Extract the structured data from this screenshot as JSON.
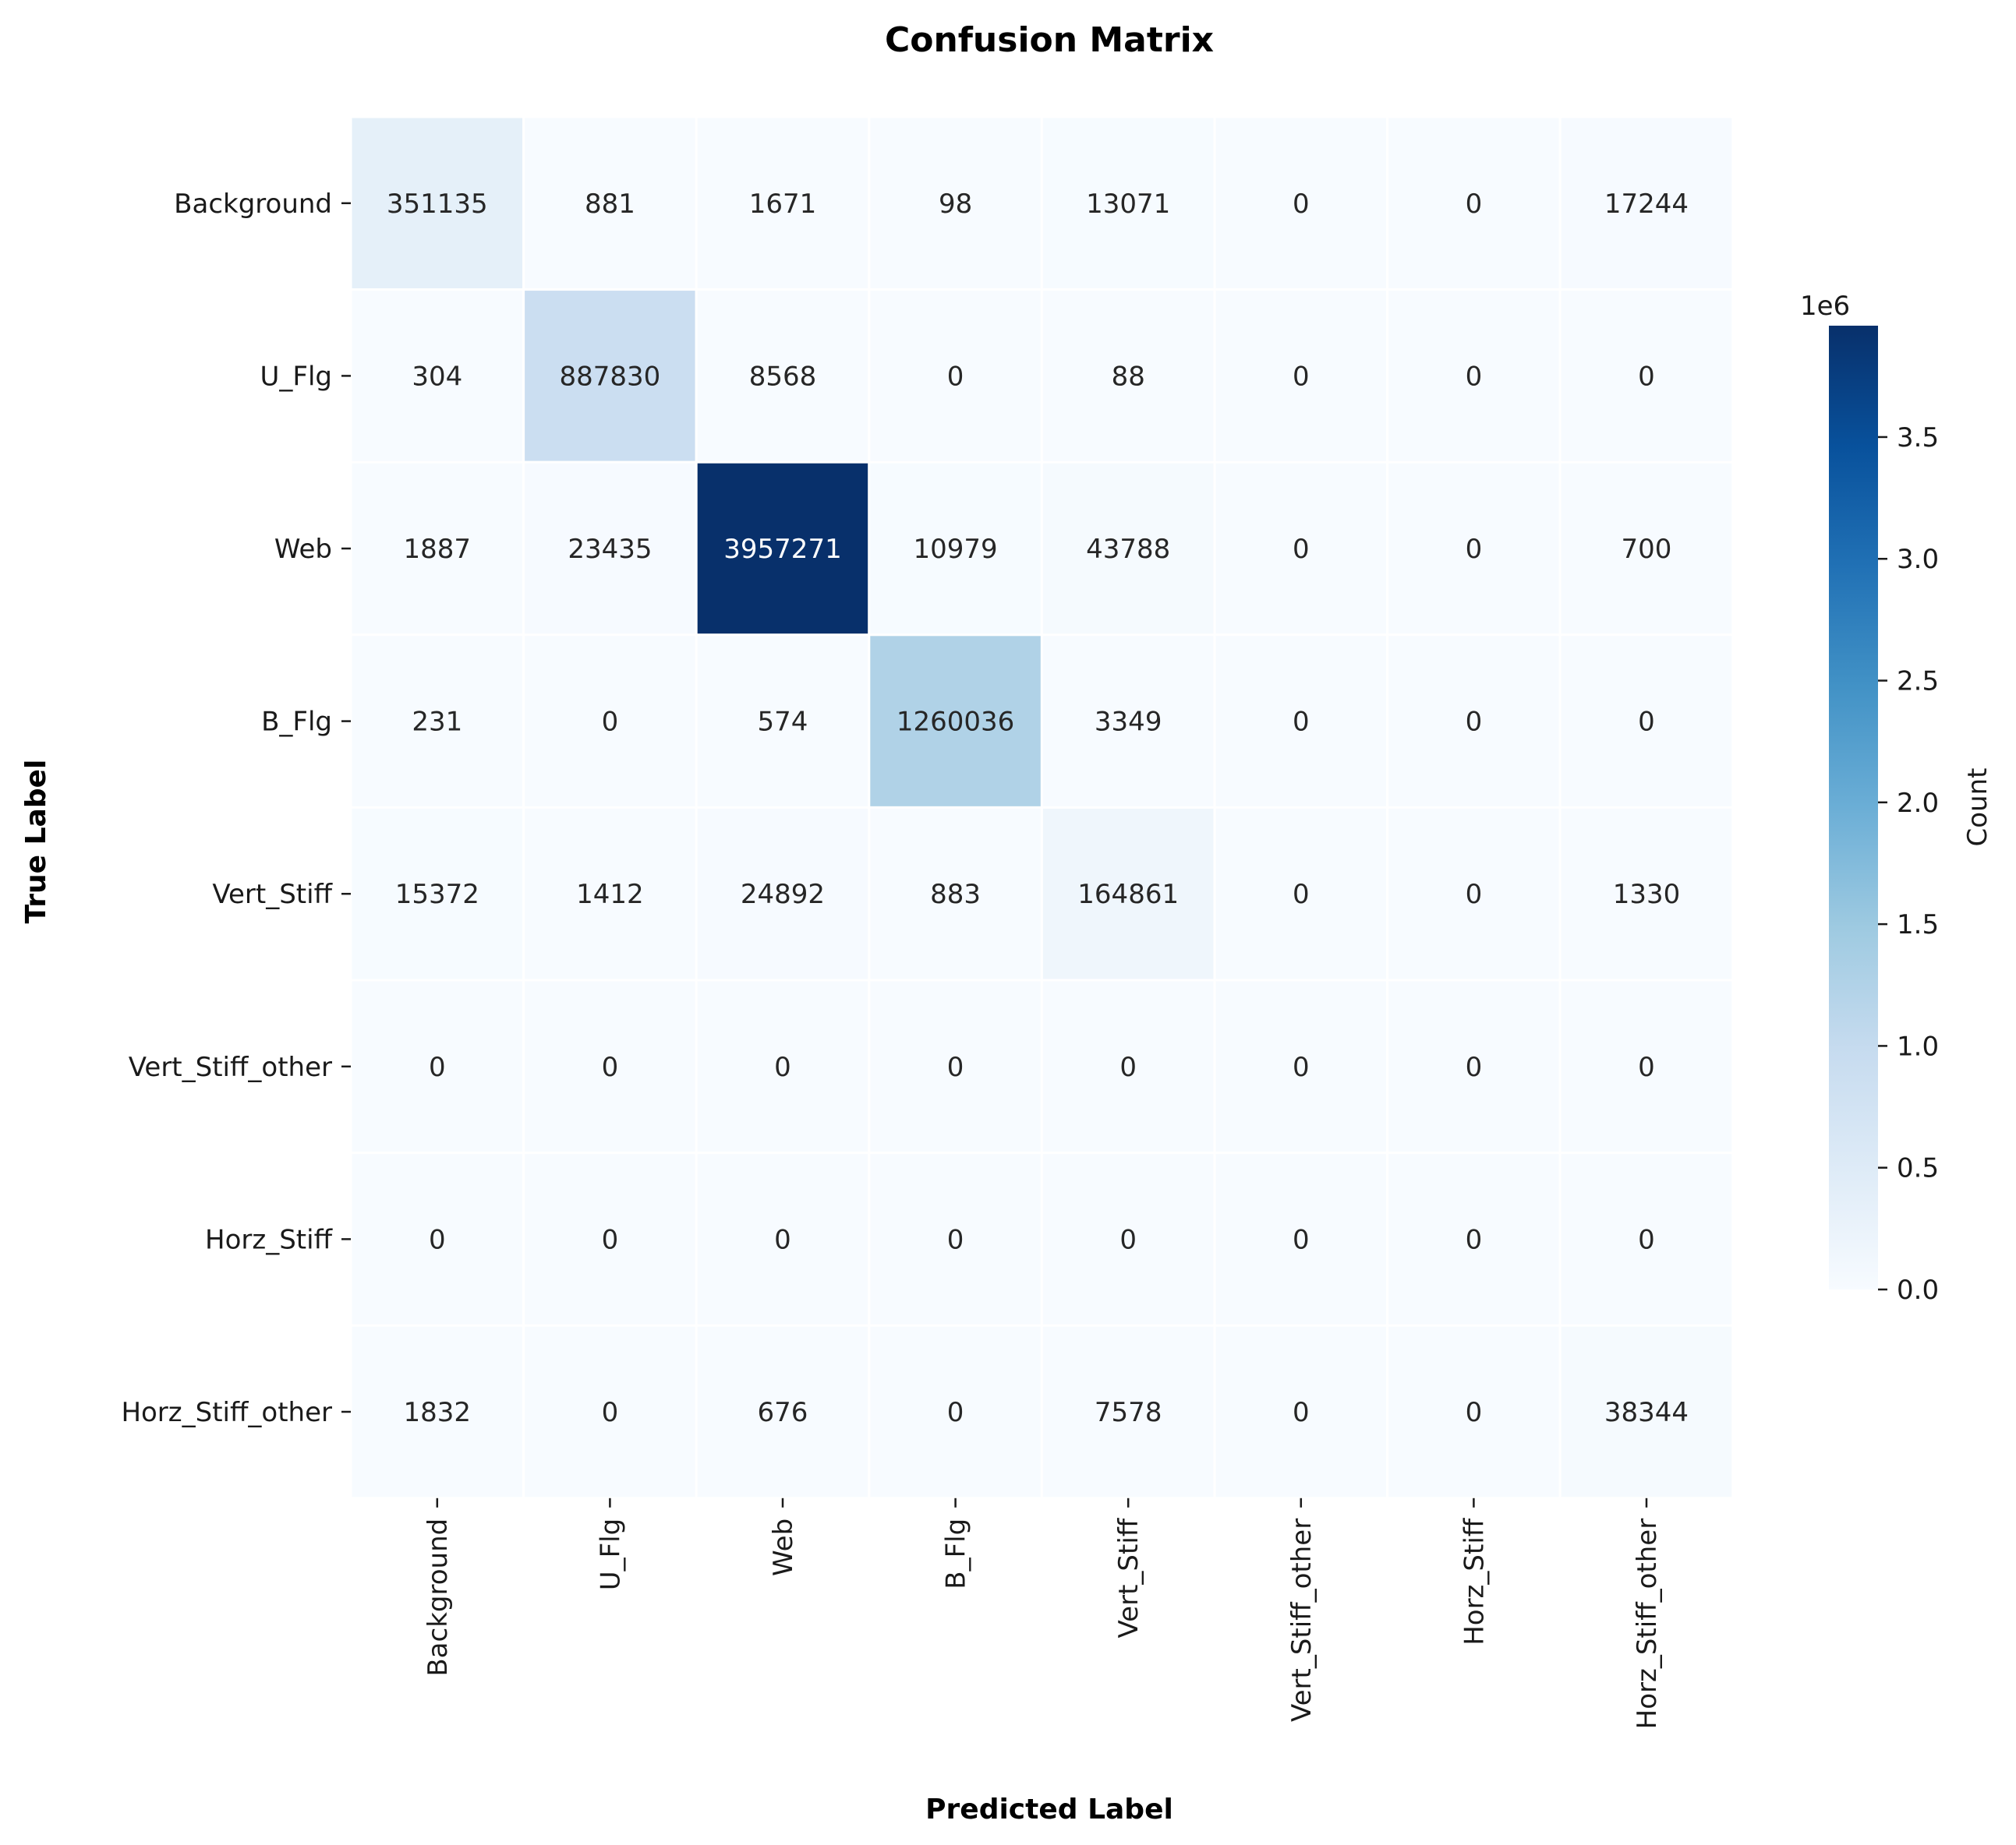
{
  "chart_data": {
    "type": "heatmap",
    "title": "Confusion Matrix",
    "xlabel": "Predicted Label",
    "ylabel": "True Label",
    "x_categories": [
      "Background",
      "U_Flg",
      "Web",
      "B_Flg",
      "Vert_Stiff",
      "Vert_Stiff_other",
      "Horz_Stiff",
      "Horz_Stiff_other"
    ],
    "y_categories": [
      "Background",
      "U_Flg",
      "Web",
      "B_Flg",
      "Vert_Stiff",
      "Vert_Stiff_other",
      "Horz_Stiff",
      "Horz_Stiff_other"
    ],
    "values": [
      [
        351135,
        881,
        1671,
        98,
        13071,
        0,
        0,
        17244
      ],
      [
        304,
        887830,
        8568,
        0,
        88,
        0,
        0,
        0
      ],
      [
        1887,
        23435,
        3957271,
        10979,
        43788,
        0,
        0,
        700
      ],
      [
        231,
        0,
        574,
        1260036,
        3349,
        0,
        0,
        0
      ],
      [
        15372,
        1412,
        24892,
        883,
        164861,
        0,
        0,
        1330
      ],
      [
        0,
        0,
        0,
        0,
        0,
        0,
        0,
        0
      ],
      [
        0,
        0,
        0,
        0,
        0,
        0,
        0,
        0
      ],
      [
        1832,
        0,
        676,
        0,
        7578,
        0,
        0,
        38344
      ]
    ],
    "colormap": "Blues",
    "colorbar": {
      "label": "Count",
      "multiplier": "1e6",
      "range": [
        0,
        3957271
      ],
      "ticks": [
        0.0,
        0.5,
        1.0,
        1.5,
        2.0,
        2.5,
        3.0,
        3.5
      ],
      "tick_labels": [
        "0.0",
        "0.5",
        "1.0",
        "1.5",
        "2.0",
        "2.5",
        "3.0",
        "3.5"
      ]
    }
  }
}
